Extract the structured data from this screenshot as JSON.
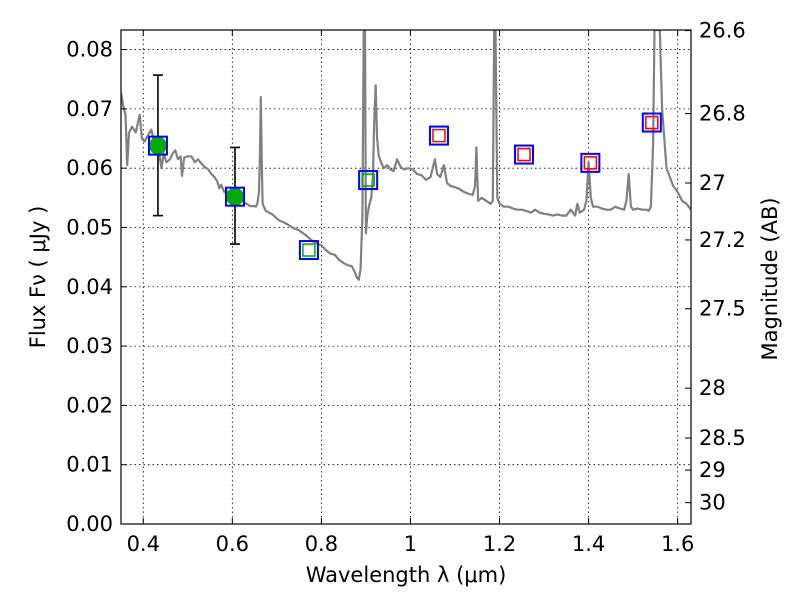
{
  "chart_data": {
    "type": "scatter",
    "title": "",
    "xlabel": "Wavelength  λ (μm)",
    "ylabel": "Flux  Fν  ( μJy )",
    "ylabel_right": "Magnitude (AB)",
    "xlim": [
      0.35,
      1.63
    ],
    "ylim": [
      0.0,
      0.0833
    ],
    "grid": true,
    "x_ticks": [
      0.4,
      0.6,
      0.8,
      1.0,
      1.2,
      1.4,
      1.6
    ],
    "x_tick_labels": [
      "0.4",
      "0.6",
      "0.8",
      "1",
      "1.2",
      "1.4",
      "1.6"
    ],
    "y_ticks": [
      0.0,
      0.01,
      0.02,
      0.03,
      0.04,
      0.05,
      0.06,
      0.07,
      0.08
    ],
    "y_tick_labels": [
      "0.00",
      "0.01",
      "0.02",
      "0.03",
      "0.04",
      "0.05",
      "0.06",
      "0.07",
      "0.08"
    ],
    "right_axis_ticks": [
      {
        "label": "26.6",
        "flux": 0.0832
      },
      {
        "label": "26.8",
        "flux": 0.0692
      },
      {
        "label": "27",
        "flux": 0.0575
      },
      {
        "label": "27.2",
        "flux": 0.0479
      },
      {
        "label": "27.5",
        "flux": 0.0363
      },
      {
        "label": "28",
        "flux": 0.0229
      },
      {
        "label": "28.5",
        "flux": 0.0145
      },
      {
        "label": "29",
        "flux": 0.0091
      },
      {
        "label": "30",
        "flux": 0.0036
      }
    ],
    "series": [
      {
        "type": "line",
        "color": "#808080",
        "points": [
          [
            0.35,
            0.0727
          ],
          [
            0.355,
            0.0705
          ],
          [
            0.36,
            0.069
          ],
          [
            0.364,
            0.0605
          ],
          [
            0.368,
            0.066
          ],
          [
            0.375,
            0.067
          ],
          [
            0.383,
            0.066
          ],
          [
            0.392,
            0.069
          ],
          [
            0.397,
            0.065
          ],
          [
            0.403,
            0.0645
          ],
          [
            0.41,
            0.0655
          ],
          [
            0.418,
            0.0665
          ],
          [
            0.426,
            0.064
          ],
          [
            0.433,
            0.064
          ],
          [
            0.437,
            0.062
          ],
          [
            0.441,
            0.06
          ],
          [
            0.446,
            0.0625
          ],
          [
            0.452,
            0.061
          ],
          [
            0.46,
            0.0615
          ],
          [
            0.466,
            0.0625
          ],
          [
            0.472,
            0.063
          ],
          [
            0.478,
            0.0615
          ],
          [
            0.484,
            0.062
          ],
          [
            0.487,
            0.0587
          ],
          [
            0.492,
            0.0618
          ],
          [
            0.5,
            0.062
          ],
          [
            0.508,
            0.062
          ],
          [
            0.516,
            0.061
          ],
          [
            0.523,
            0.0615
          ],
          [
            0.53,
            0.0608
          ],
          [
            0.538,
            0.0602
          ],
          [
            0.546,
            0.0598
          ],
          [
            0.553,
            0.059
          ],
          [
            0.56,
            0.0585
          ],
          [
            0.566,
            0.0578
          ],
          [
            0.571,
            0.0566
          ],
          [
            0.575,
            0.0572
          ],
          [
            0.582,
            0.056
          ],
          [
            0.59,
            0.056
          ],
          [
            0.6,
            0.056
          ],
          [
            0.61,
            0.0553
          ],
          [
            0.62,
            0.0545
          ],
          [
            0.63,
            0.0541
          ],
          [
            0.64,
            0.0536
          ],
          [
            0.65,
            0.0536
          ],
          [
            0.653,
            0.0535
          ],
          [
            0.656,
            0.054
          ],
          [
            0.66,
            0.056
          ],
          [
            0.662,
            0.062
          ],
          [
            0.664,
            0.072
          ],
          [
            0.666,
            0.062
          ],
          [
            0.668,
            0.054
          ],
          [
            0.675,
            0.0528
          ],
          [
            0.69,
            0.0522
          ],
          [
            0.705,
            0.0512
          ],
          [
            0.72,
            0.0507
          ],
          [
            0.735,
            0.05
          ],
          [
            0.75,
            0.0495
          ],
          [
            0.765,
            0.0487
          ],
          [
            0.78,
            0.0477
          ],
          [
            0.79,
            0.0473
          ],
          [
            0.8,
            0.047
          ],
          [
            0.81,
            0.0462
          ],
          [
            0.82,
            0.0456
          ],
          [
            0.83,
            0.0454
          ],
          [
            0.84,
            0.0445
          ],
          [
            0.85,
            0.044
          ],
          [
            0.86,
            0.0436
          ],
          [
            0.868,
            0.0435
          ],
          [
            0.875,
            0.0425
          ],
          [
            0.88,
            0.0415
          ],
          [
            0.884,
            0.0412
          ],
          [
            0.888,
            0.043
          ],
          [
            0.892,
            0.052
          ],
          [
            0.895,
            0.0833
          ],
          [
            0.898,
            0.0833
          ],
          [
            0.9,
            0.049
          ],
          [
            0.903,
            0.052
          ],
          [
            0.908,
            0.054
          ],
          [
            0.912,
            0.055
          ],
          [
            0.916,
            0.059
          ],
          [
            0.919,
            0.069
          ],
          [
            0.922,
            0.074
          ],
          [
            0.925,
            0.065
          ],
          [
            0.929,
            0.062
          ],
          [
            0.933,
            0.0612
          ],
          [
            0.94,
            0.06
          ],
          [
            0.948,
            0.0605
          ],
          [
            0.955,
            0.0598
          ],
          [
            0.962,
            0.0595
          ],
          [
            0.97,
            0.0615
          ],
          [
            0.978,
            0.0602
          ],
          [
            0.985,
            0.0598
          ],
          [
            0.995,
            0.06
          ],
          [
            1.005,
            0.0598
          ],
          [
            1.015,
            0.059
          ],
          [
            1.025,
            0.0588
          ],
          [
            1.035,
            0.058
          ],
          [
            1.045,
            0.0585
          ],
          [
            1.05,
            0.06
          ],
          [
            1.055,
            0.0615
          ],
          [
            1.06,
            0.059
          ],
          [
            1.067,
            0.0585
          ],
          [
            1.075,
            0.0605
          ],
          [
            1.082,
            0.0575
          ],
          [
            1.09,
            0.057
          ],
          [
            1.1,
            0.0568
          ],
          [
            1.11,
            0.0565
          ],
          [
            1.12,
            0.056
          ],
          [
            1.13,
            0.0557
          ],
          [
            1.14,
            0.0555
          ],
          [
            1.145,
            0.057
          ],
          [
            1.148,
            0.0635
          ],
          [
            1.152,
            0.0545
          ],
          [
            1.16,
            0.055
          ],
          [
            1.17,
            0.0545
          ],
          [
            1.18,
            0.054
          ],
          [
            1.185,
            0.0545
          ],
          [
            1.188,
            0.0833
          ],
          [
            1.191,
            0.0833
          ],
          [
            1.195,
            0.055
          ],
          [
            1.2,
            0.054
          ],
          [
            1.21,
            0.0535
          ],
          [
            1.22,
            0.0535
          ],
          [
            1.23,
            0.0532
          ],
          [
            1.24,
            0.053
          ],
          [
            1.25,
            0.053
          ],
          [
            1.26,
            0.0528
          ],
          [
            1.27,
            0.0525
          ],
          [
            1.28,
            0.053
          ],
          [
            1.29,
            0.0525
          ],
          [
            1.3,
            0.0523
          ],
          [
            1.31,
            0.0522
          ],
          [
            1.32,
            0.052
          ],
          [
            1.33,
            0.0522
          ],
          [
            1.34,
            0.052
          ],
          [
            1.35,
            0.052
          ],
          [
            1.36,
            0.053
          ],
          [
            1.365,
            0.0525
          ],
          [
            1.37,
            0.052
          ],
          [
            1.375,
            0.054
          ],
          [
            1.38,
            0.0525
          ],
          [
            1.39,
            0.053
          ],
          [
            1.395,
            0.0545
          ],
          [
            1.4,
            0.061
          ],
          [
            1.405,
            0.055
          ],
          [
            1.41,
            0.0535
          ],
          [
            1.42,
            0.0535
          ],
          [
            1.43,
            0.0532
          ],
          [
            1.44,
            0.053
          ],
          [
            1.45,
            0.053
          ],
          [
            1.46,
            0.0535
          ],
          [
            1.47,
            0.0532
          ],
          [
            1.48,
            0.053
          ],
          [
            1.485,
            0.0545
          ],
          [
            1.49,
            0.059
          ],
          [
            1.495,
            0.0535
          ],
          [
            1.5,
            0.053
          ],
          [
            1.51,
            0.0532
          ],
          [
            1.52,
            0.053
          ],
          [
            1.53,
            0.053
          ],
          [
            1.535,
            0.0528
          ],
          [
            1.54,
            0.0535
          ],
          [
            1.545,
            0.064
          ],
          [
            1.548,
            0.0833
          ],
          [
            1.552,
            0.0833
          ],
          [
            1.56,
            0.0833
          ],
          [
            1.565,
            0.07
          ],
          [
            1.575,
            0.06
          ],
          [
            1.59,
            0.057
          ],
          [
            1.6,
            0.056
          ],
          [
            1.61,
            0.0545
          ],
          [
            1.62,
            0.054
          ],
          [
            1.63,
            0.053
          ]
        ]
      },
      {
        "type": "errorbar",
        "marker": "circle",
        "color": "#00aa00",
        "points": [
          {
            "x": 0.433,
            "y": 0.0638,
            "ylo": 0.052,
            "yhi": 0.0757
          },
          {
            "x": 0.606,
            "y": 0.0552,
            "ylo": 0.0472,
            "yhi": 0.0635
          }
        ]
      },
      {
        "type": "scatter",
        "marker": "square",
        "color": "#0000ff",
        "points": [
          [
            0.433,
            0.0638
          ],
          [
            0.606,
            0.0552
          ],
          [
            0.772,
            0.0462
          ],
          [
            0.905,
            0.058
          ],
          [
            1.064,
            0.0655
          ],
          [
            1.255,
            0.0623
          ],
          [
            1.404,
            0.0609
          ],
          [
            1.542,
            0.0677
          ]
        ]
      },
      {
        "type": "scatter",
        "marker": "square",
        "color": "#00aa00",
        "points": [
          [
            0.772,
            0.0462
          ],
          [
            0.905,
            0.058
          ]
        ]
      },
      {
        "type": "scatter",
        "marker": "square",
        "color": "#ff0000",
        "points": [
          [
            1.064,
            0.0655
          ],
          [
            1.255,
            0.0623
          ],
          [
            1.404,
            0.0609
          ],
          [
            1.542,
            0.0677
          ]
        ]
      }
    ]
  }
}
